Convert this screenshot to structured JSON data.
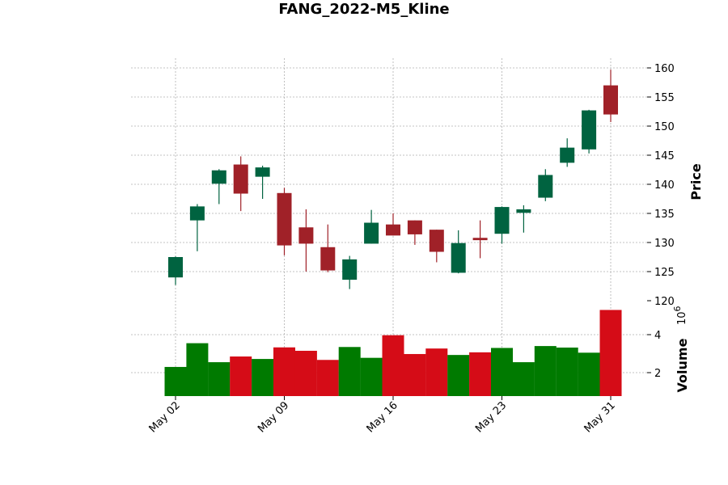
{
  "chart_data": {
    "type": "candlestick",
    "title": "FANG_2022-M5_Kline",
    "up_color": "#006340",
    "down_color": "#a02128",
    "volume_up_color": "#007a00",
    "volume_down_color": "#d50c17",
    "price_panel": {
      "ylabel": "Price",
      "ylim": [
        120,
        161.5
      ],
      "yticks": [
        120,
        125,
        130,
        135,
        140,
        145,
        150,
        155,
        160
      ],
      "grid": true
    },
    "volume_panel": {
      "ylabel": "Volume",
      "exponent_label": "10^6",
      "ylim": [
        0.75,
        5.3
      ],
      "yticks": [
        2,
        4
      ],
      "tick_labels": [
        "2",
        "4"
      ]
    },
    "x_ticks": [
      {
        "index": 0,
        "label": "May 02"
      },
      {
        "index": 5,
        "label": "May 09"
      },
      {
        "index": 10,
        "label": "May 16"
      },
      {
        "index": 15,
        "label": "May 23"
      },
      {
        "index": 20,
        "label": "May 31"
      }
    ],
    "candles": [
      {
        "date": "2022-05-02",
        "open": 124.0,
        "high": 127.6,
        "low": 122.7,
        "close": 127.5,
        "volume": 2.3
      },
      {
        "date": "2022-05-03",
        "open": 133.8,
        "high": 136.6,
        "low": 128.5,
        "close": 136.2,
        "volume": 3.55
      },
      {
        "date": "2022-05-04",
        "open": 140.1,
        "high": 142.6,
        "low": 136.6,
        "close": 142.4,
        "volume": 2.55
      },
      {
        "date": "2022-05-05",
        "open": 143.4,
        "high": 144.8,
        "low": 135.4,
        "close": 138.4,
        "volume": 2.85
      },
      {
        "date": "2022-05-06",
        "open": 141.3,
        "high": 143.2,
        "low": 137.5,
        "close": 142.9,
        "volume": 2.72
      },
      {
        "date": "2022-05-09",
        "open": 138.5,
        "high": 139.4,
        "low": 127.8,
        "close": 129.5,
        "volume": 3.33
      },
      {
        "date": "2022-05-10",
        "open": 132.6,
        "high": 135.7,
        "low": 125.0,
        "close": 129.8,
        "volume": 3.15
      },
      {
        "date": "2022-05-11",
        "open": 129.2,
        "high": 133.1,
        "low": 124.9,
        "close": 125.2,
        "volume": 2.67
      },
      {
        "date": "2022-05-12",
        "open": 123.6,
        "high": 127.7,
        "low": 122.0,
        "close": 127.1,
        "volume": 3.35
      },
      {
        "date": "2022-05-13",
        "open": 129.8,
        "high": 135.6,
        "low": 129.8,
        "close": 133.4,
        "volume": 2.78
      },
      {
        "date": "2022-05-16",
        "open": 133.1,
        "high": 135.0,
        "low": 131.2,
        "close": 131.2,
        "volume": 3.97
      },
      {
        "date": "2022-05-17",
        "open": 133.8,
        "high": 133.8,
        "low": 129.6,
        "close": 131.4,
        "volume": 2.98
      },
      {
        "date": "2022-05-18",
        "open": 132.2,
        "high": 132.2,
        "low": 126.6,
        "close": 128.4,
        "volume": 3.27
      },
      {
        "date": "2022-05-19",
        "open": 124.8,
        "high": 132.1,
        "low": 124.7,
        "close": 129.9,
        "volume": 2.93
      },
      {
        "date": "2022-05-20",
        "open": 130.8,
        "high": 133.8,
        "low": 127.3,
        "close": 130.4,
        "volume": 3.07
      },
      {
        "date": "2022-05-23",
        "open": 131.5,
        "high": 136.2,
        "low": 129.8,
        "close": 136.1,
        "volume": 3.3
      },
      {
        "date": "2022-05-24",
        "open": 135.1,
        "high": 136.4,
        "low": 131.7,
        "close": 135.7,
        "volume": 2.55
      },
      {
        "date": "2022-05-25",
        "open": 137.7,
        "high": 142.6,
        "low": 137.1,
        "close": 141.6,
        "volume": 3.4
      },
      {
        "date": "2022-05-26",
        "open": 143.7,
        "high": 147.9,
        "low": 143.0,
        "close": 146.3,
        "volume": 3.32
      },
      {
        "date": "2022-05-27",
        "open": 146.0,
        "high": 152.8,
        "low": 145.3,
        "close": 152.7,
        "volume": 3.05
      },
      {
        "date": "2022-05-31",
        "open": 157.0,
        "high": 159.7,
        "low": 150.7,
        "close": 152.0,
        "volume": 5.3
      }
    ]
  }
}
